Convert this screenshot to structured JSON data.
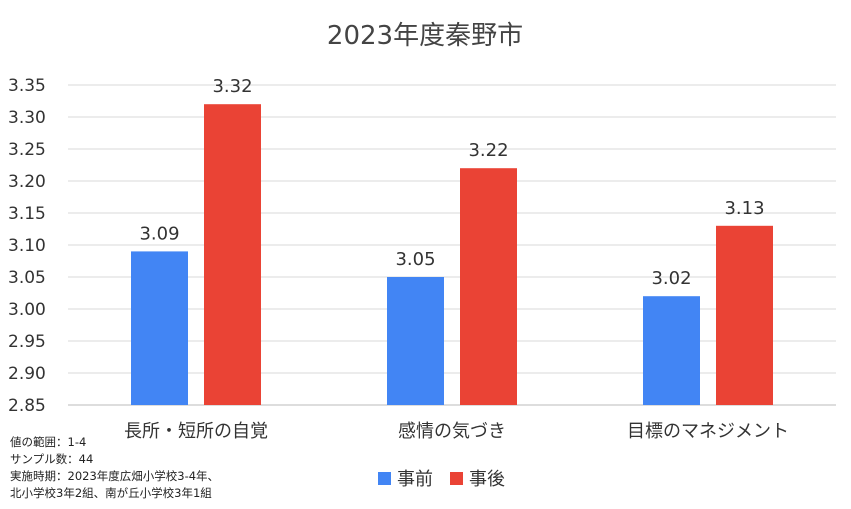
{
  "chart_data": {
    "type": "bar",
    "title": "2023年度秦野市",
    "categories": [
      "長所・短所の自覚",
      "感情の気づき",
      "目標のマネジメント"
    ],
    "series": [
      {
        "name": "事前",
        "values": [
          3.09,
          3.05,
          3.02
        ],
        "labels": [
          "3.09",
          "3.05",
          "3.02"
        ],
        "color": "#4285f4"
      },
      {
        "name": "事後",
        "values": [
          3.32,
          3.22,
          3.13
        ],
        "labels": [
          "3.32",
          "3.22",
          "3.13"
        ],
        "color": "#ea4335"
      }
    ],
    "ylim": [
      2.85,
      3.35
    ],
    "yticks": [
      "3.35",
      "3.30",
      "3.25",
      "3.20",
      "3.15",
      "3.10",
      "3.05",
      "3.00",
      "2.95",
      "2.90",
      "2.85"
    ],
    "xlabel": "",
    "ylabel": "",
    "grid": true,
    "legend_position": "bottom"
  },
  "notes": {
    "range": "値の範囲：1-4",
    "sample": "サンプル数：44",
    "period_line1": "実施時期：2023年度広畑小学校3-4年、",
    "period_line2": "北小学校3年2組、南が丘小学校3年1組"
  }
}
